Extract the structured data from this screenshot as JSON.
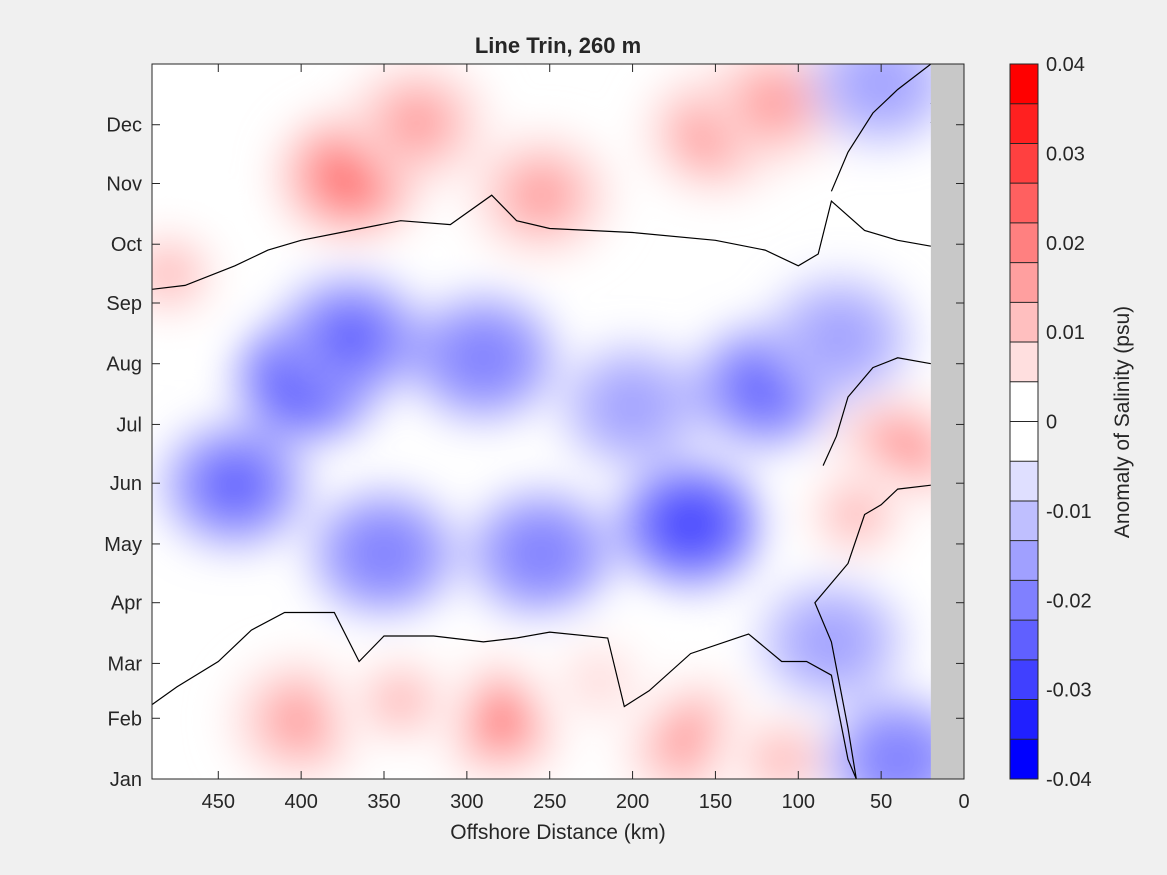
{
  "chart_data": {
    "type": "heatmap",
    "subtype": "filled-contour",
    "title": "Line Trin, 260 m",
    "xlabel": "Offshore Distance (km)",
    "ylabel": "",
    "xlim": [
      490,
      0
    ],
    "x_reversed": true,
    "x_ticks": [
      450,
      400,
      350,
      300,
      250,
      200,
      150,
      100,
      50,
      0
    ],
    "y_ticks": [
      "Jan",
      "Feb",
      "Mar",
      "Apr",
      "May",
      "Jun",
      "Jul",
      "Aug",
      "Sep",
      "Oct",
      "Nov",
      "Dec"
    ],
    "y_tick_days": [
      0,
      31,
      59,
      90,
      120,
      151,
      181,
      212,
      243,
      273,
      304,
      334
    ],
    "ylim_days": [
      0,
      365
    ],
    "no_data_region_km": [
      0,
      20
    ],
    "no_data_color": "#c8c8c8",
    "colorbar": {
      "label": "Anomaly of Salinity (psu)",
      "range": [
        -0.04,
        0.04
      ],
      "step": 0.005,
      "tick_values": [
        -0.04,
        -0.03,
        -0.02,
        -0.01,
        0,
        0.01,
        0.02,
        0.03,
        0.04
      ],
      "tick_labels": [
        "-0.04",
        "-0.03",
        "-0.02",
        "-0.01",
        "0",
        "0.01",
        "0.02",
        "0.03",
        "0.04"
      ],
      "colors": [
        "#0000ff",
        "#2020ff",
        "#4040ff",
        "#6060ff",
        "#8080ff",
        "#a0a0ff",
        "#bfbfff",
        "#dfdfff",
        "#ffffff",
        "#ffffff",
        "#ffdfdf",
        "#ffbfbf",
        "#ff9f9f",
        "#ff8080",
        "#ff6060",
        "#ff4040",
        "#ff2020",
        "#ff0000"
      ]
    },
    "anomaly_features": [
      {
        "sign": "positive",
        "km": 370,
        "day": 308,
        "peak": 0.03
      },
      {
        "sign": "positive",
        "km": 330,
        "day": 335,
        "peak": 0.02
      },
      {
        "sign": "positive",
        "km": 255,
        "day": 298,
        "peak": 0.02
      },
      {
        "sign": "positive",
        "km": 150,
        "day": 330,
        "peak": 0.025
      },
      {
        "sign": "positive",
        "km": 115,
        "day": 345,
        "peak": 0.02
      },
      {
        "sign": "positive",
        "km": 480,
        "day": 258,
        "peak": 0.015
      },
      {
        "sign": "positive",
        "km": 40,
        "day": 165,
        "peak": 0.025
      },
      {
        "sign": "positive",
        "km": 65,
        "day": 135,
        "peak": 0.015
      },
      {
        "sign": "positive",
        "km": 280,
        "day": 30,
        "peak": 0.025
      },
      {
        "sign": "positive",
        "km": 400,
        "day": 30,
        "peak": 0.02
      },
      {
        "sign": "positive",
        "km": 340,
        "day": 40,
        "peak": 0.015
      },
      {
        "sign": "positive",
        "km": 165,
        "day": 20,
        "peak": 0.02
      },
      {
        "sign": "positive",
        "km": 110,
        "day": 10,
        "peak": 0.015
      },
      {
        "sign": "positive",
        "km": 220,
        "day": 50,
        "peak": 0.01
      },
      {
        "sign": "negative",
        "km": 395,
        "day": 205,
        "peak": -0.03
      },
      {
        "sign": "negative",
        "km": 370,
        "day": 225,
        "peak": -0.025
      },
      {
        "sign": "negative",
        "km": 440,
        "day": 150,
        "peak": -0.025
      },
      {
        "sign": "negative",
        "km": 165,
        "day": 130,
        "peak": -0.03
      },
      {
        "sign": "negative",
        "km": 255,
        "day": 115,
        "peak": -0.02
      },
      {
        "sign": "negative",
        "km": 350,
        "day": 115,
        "peak": -0.02
      },
      {
        "sign": "negative",
        "km": 290,
        "day": 215,
        "peak": -0.02
      },
      {
        "sign": "negative",
        "km": 120,
        "day": 200,
        "peak": -0.025
      },
      {
        "sign": "negative",
        "km": 200,
        "day": 190,
        "peak": -0.015
      },
      {
        "sign": "negative",
        "km": 40,
        "day": 10,
        "peak": -0.02
      },
      {
        "sign": "negative",
        "km": 80,
        "day": 70,
        "peak": -0.015
      },
      {
        "sign": "negative",
        "km": 50,
        "day": 355,
        "peak": -0.015
      },
      {
        "sign": "negative",
        "km": 75,
        "day": 225,
        "peak": -0.015
      }
    ],
    "grid": false,
    "legend": "none"
  }
}
